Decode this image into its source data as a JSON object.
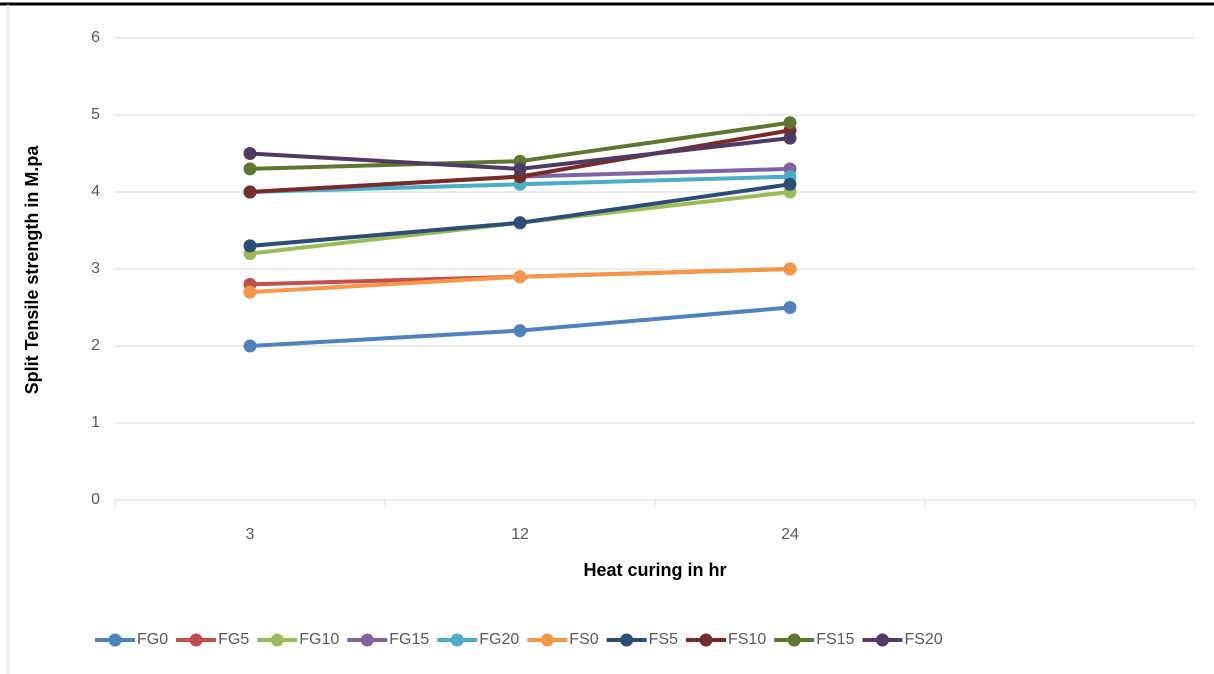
{
  "chart_data": {
    "type": "line",
    "x_label": "Heat curing in hr",
    "y_label": "Split Tensile strength in M.pa",
    "categories": [
      "3",
      "12",
      "24",
      null
    ],
    "ylim": [
      0,
      6
    ],
    "yticks": [
      0,
      1,
      2,
      3,
      4,
      5,
      6
    ],
    "grid": true,
    "legend": "bottom",
    "series": [
      {
        "name": "FG0",
        "color": "#4f81bd",
        "values": [
          2.0,
          2.2,
          2.5,
          null
        ]
      },
      {
        "name": "FG5",
        "color": "#c0504d",
        "values": [
          2.8,
          2.9,
          3.0,
          null
        ]
      },
      {
        "name": "FG10",
        "color": "#9bbb59",
        "values": [
          3.2,
          3.6,
          4.0,
          null
        ]
      },
      {
        "name": "FG15",
        "color": "#8064a2",
        "values": [
          4.0,
          4.2,
          4.3,
          null
        ]
      },
      {
        "name": "FG20",
        "color": "#4bacc6",
        "values": [
          4.0,
          4.1,
          4.2,
          null
        ]
      },
      {
        "name": "FS0",
        "color": "#f79646",
        "values": [
          2.7,
          2.9,
          3.0,
          null
        ]
      },
      {
        "name": "FS5",
        "color": "#2c4d75",
        "values": [
          3.3,
          3.6,
          4.1,
          null
        ]
      },
      {
        "name": "FS10",
        "color": "#772c2a",
        "values": [
          4.0,
          4.2,
          4.8,
          null
        ]
      },
      {
        "name": "FS15",
        "color": "#5f7530",
        "values": [
          4.3,
          4.4,
          4.9,
          null
        ]
      },
      {
        "name": "FS20",
        "color": "#4d3b62",
        "values": [
          4.5,
          4.3,
          4.7,
          null
        ]
      }
    ]
  }
}
